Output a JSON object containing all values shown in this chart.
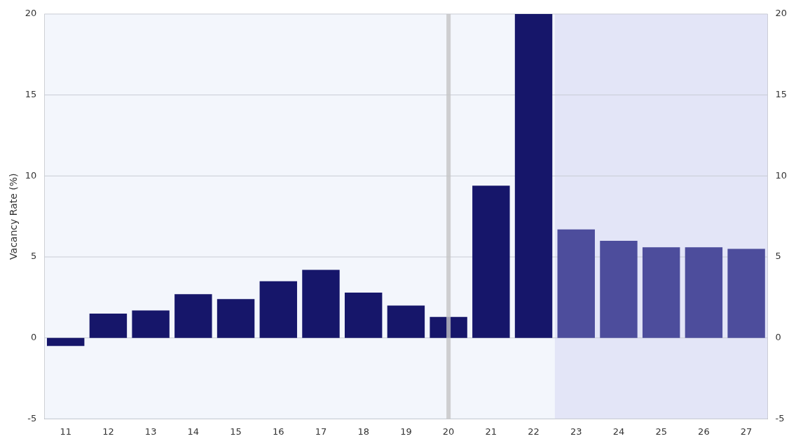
{
  "chart_data": {
    "type": "bar",
    "ylabel": "Vacancy Rate (%)",
    "categories": [
      "11",
      "12",
      "13",
      "14",
      "15",
      "16",
      "17",
      "18",
      "19",
      "20",
      "21",
      "22",
      "23",
      "24",
      "25",
      "26",
      "27"
    ],
    "values": [
      -0.5,
      1.5,
      1.7,
      2.7,
      2.4,
      3.5,
      4.2,
      2.8,
      2.0,
      1.3,
      9.4,
      20.0,
      6.7,
      6.0,
      5.6,
      5.6,
      5.5
    ],
    "colors": [
      "#16166a",
      "#16166a",
      "#16166a",
      "#16166a",
      "#16166a",
      "#16166a",
      "#16166a",
      "#16166a",
      "#16166a",
      "#16166a",
      "#16166a",
      "#16166a",
      "#4d4d9c",
      "#4d4d9c",
      "#4d4d9c",
      "#4d4d9c",
      "#4d4d9c"
    ],
    "ylim": [
      -5,
      20
    ],
    "yticks": [
      -5,
      0,
      5,
      10,
      15,
      20
    ],
    "y2lim": [
      -5,
      20
    ],
    "y2ticks": [
      -5,
      0,
      5,
      10,
      15,
      20
    ],
    "grid": "y",
    "bands": [
      {
        "axis": "x",
        "from": "23",
        "to": "27",
        "color": "#e3e5f7"
      }
    ],
    "ref_lines": [
      {
        "axis": "x",
        "value": "20",
        "color": "#c4c4c4"
      }
    ]
  }
}
